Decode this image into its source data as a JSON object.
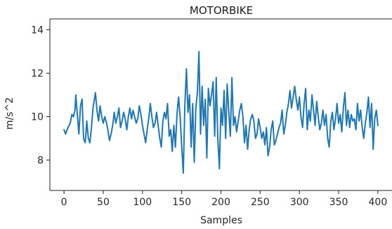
{
  "chart_data": {
    "type": "line",
    "title": "MOTORBIKE",
    "xlabel": "Samples",
    "ylabel": "m/s^2",
    "xlim": [
      -18,
      418
    ],
    "ylim": [
      6.6,
      14.5
    ],
    "xticks": [
      0,
      50,
      100,
      150,
      200,
      250,
      300,
      350,
      400
    ],
    "yticks": [
      8,
      10,
      12,
      14
    ],
    "grid": false,
    "line_color": "#1f77b4",
    "series": [
      {
        "x": [
          0,
          2,
          5,
          8,
          10,
          12,
          14,
          15,
          17,
          19,
          21,
          23,
          25,
          27,
          29,
          31,
          33,
          35,
          37,
          40,
          42,
          44,
          46,
          48,
          50,
          52,
          55,
          58,
          60,
          62,
          64,
          66,
          68,
          70,
          72,
          74,
          76,
          78,
          80,
          82,
          84,
          86,
          88,
          90,
          92,
          94,
          96,
          98,
          100,
          102,
          104,
          106,
          108,
          110,
          112,
          114,
          116,
          118,
          120,
          122,
          124,
          126,
          128,
          130,
          132,
          134,
          136,
          138,
          140,
          142,
          144,
          146,
          148,
          150,
          152,
          154,
          156,
          158,
          160,
          162,
          164,
          166,
          168,
          170,
          172,
          174,
          176,
          178,
          180,
          182,
          184,
          186,
          188,
          190,
          192,
          194,
          196,
          198,
          200,
          202,
          204,
          206,
          208,
          210,
          212,
          214,
          216,
          218,
          220,
          222,
          224,
          226,
          228,
          230,
          232,
          234,
          236,
          238,
          240,
          242,
          244,
          246,
          248,
          250,
          252,
          254,
          256,
          258,
          260,
          262,
          264,
          266,
          268,
          270,
          272,
          274,
          276,
          278,
          280,
          282,
          284,
          286,
          288,
          290,
          292,
          294,
          296,
          298,
          300,
          302,
          304,
          306,
          308,
          310,
          312,
          314,
          316,
          318,
          320,
          322,
          324,
          326,
          328,
          330,
          332,
          334,
          336,
          338,
          340,
          342,
          344,
          346,
          348,
          350,
          352,
          354,
          356,
          358,
          360,
          362,
          364,
          366,
          368,
          370,
          372,
          374,
          376,
          378,
          380,
          382,
          384,
          386,
          388,
          390,
          392,
          394,
          396,
          398,
          400
        ],
        "y": [
          9.4,
          9.2,
          9.5,
          9.7,
          10.1,
          10.0,
          10.3,
          11.0,
          10.1,
          9.2,
          10.5,
          10.8,
          9.0,
          8.8,
          9.8,
          9.0,
          8.8,
          9.5,
          10.4,
          11.1,
          10.3,
          9.8,
          10.5,
          10.0,
          9.7,
          10.0,
          9.6,
          8.9,
          9.2,
          9.6,
          10.2,
          9.7,
          10.0,
          10.4,
          9.5,
          9.8,
          10.2,
          9.9,
          9.4,
          10.0,
          10.4,
          9.9,
          10.3,
          10.0,
          9.7,
          9.9,
          10.5,
          10.1,
          9.6,
          9.2,
          8.8,
          9.4,
          9.9,
          10.6,
          10.0,
          9.5,
          9.7,
          10.2,
          9.6,
          9.0,
          8.6,
          9.8,
          10.2,
          9.9,
          10.6,
          9.1,
          9.4,
          8.4,
          9.6,
          8.6,
          10.1,
          10.9,
          10.0,
          8.6,
          7.4,
          10.5,
          12.2,
          10.2,
          11.0,
          8.6,
          10.6,
          7.9,
          10.4,
          11.1,
          13.0,
          9.2,
          11.4,
          9.6,
          10.8,
          8.1,
          11.3,
          10.5,
          11.0,
          11.6,
          9.1,
          11.8,
          9.0,
          7.6,
          10.4,
          9.6,
          11.2,
          9.0,
          11.5,
          10.2,
          9.1,
          11.8,
          9.6,
          10.0,
          9.3,
          9.8,
          10.3,
          10.6,
          10.0,
          8.8,
          9.6,
          8.5,
          9.4,
          9.9,
          10.1,
          9.8,
          9.0,
          9.2,
          9.9,
          9.5,
          9.0,
          9.3,
          8.7,
          9.5,
          8.2,
          8.6,
          9.4,
          9.8,
          8.7,
          8.9,
          9.2,
          9.5,
          9.7,
          10.3,
          9.2,
          9.6,
          10.2,
          10.6,
          11.2,
          10.4,
          10.9,
          11.4,
          10.8,
          10.3,
          10.9,
          10.0,
          9.5,
          10.6,
          11.3,
          9.4,
          10.3,
          9.8,
          11.0,
          10.3,
          9.6,
          10.7,
          10.0,
          9.4,
          9.7,
          10.3,
          9.6,
          10.1,
          9.0,
          8.6,
          9.8,
          10.2,
          9.4,
          9.9,
          10.6,
          9.7,
          10.1,
          9.3,
          10.4,
          11.1,
          9.6,
          10.3,
          9.5,
          10.1,
          9.8,
          9.9,
          9.4,
          10.6,
          9.8,
          10.3,
          9.5,
          9.0,
          9.7,
          10.2,
          10.9,
          9.5,
          10.6,
          8.5,
          9.9,
          10.3,
          9.6
        ]
      }
    ]
  }
}
